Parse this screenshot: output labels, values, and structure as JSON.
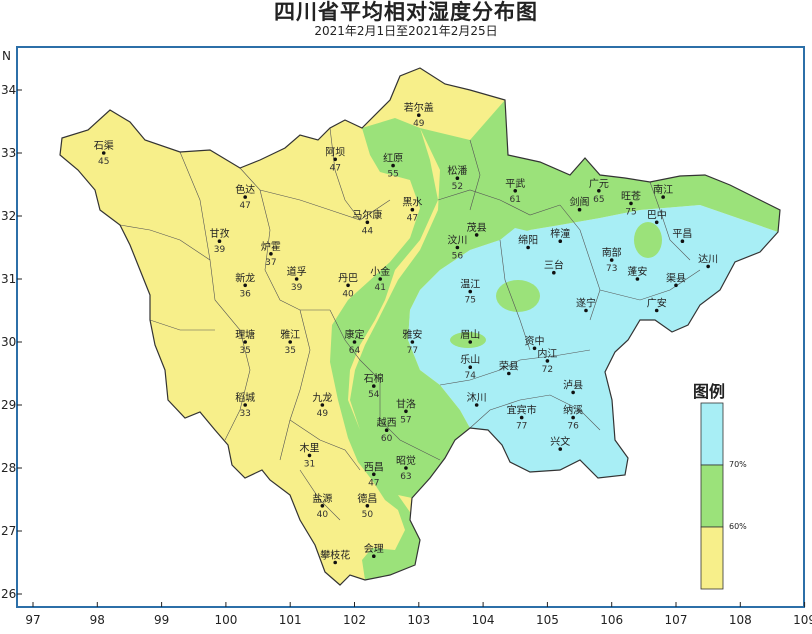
{
  "title": "四川省平均相对湿度分布图",
  "subtitle": "2021年2月1日至2021年2月25日",
  "colors": {
    "low": "#f7ef8a",
    "mid": "#9be27a",
    "high": "#a8eef5",
    "border": "#333333",
    "frame": "#2c6fa8"
  },
  "axis": {
    "x_ticks": [
      "97",
      "98",
      "99",
      "100",
      "101",
      "102",
      "103",
      "104",
      "105",
      "106",
      "107",
      "108",
      "109"
    ],
    "y_ticks": [
      "26",
      "27",
      "28",
      "29",
      "30",
      "31",
      "32",
      "33",
      "34"
    ],
    "north_label": "N"
  },
  "legend": {
    "title": "图例",
    "breaks": [
      "70%",
      "60%"
    ],
    "classes": [
      "high",
      "mid",
      "low"
    ]
  },
  "stations": [
    {
      "name": "若尔盖",
      "value": "49",
      "lon": 103.0,
      "lat": 33.6
    },
    {
      "name": "石渠",
      "value": "45",
      "lon": 98.1,
      "lat": 33.0
    },
    {
      "name": "色达",
      "value": "47",
      "lon": 100.3,
      "lat": 32.3
    },
    {
      "name": "阿坝",
      "value": "47",
      "lon": 101.7,
      "lat": 32.9
    },
    {
      "name": "红原",
      "value": "55",
      "lon": 102.6,
      "lat": 32.8
    },
    {
      "name": "松潘",
      "value": "52",
      "lon": 103.6,
      "lat": 32.6
    },
    {
      "name": "平武",
      "value": "61",
      "lon": 104.5,
      "lat": 32.4
    },
    {
      "name": "广元",
      "value": "65",
      "lon": 105.8,
      "lat": 32.4
    },
    {
      "name": "旺苍",
      "value": "75",
      "lon": 106.3,
      "lat": 32.2
    },
    {
      "name": "南江",
      "value": "",
      "lon": 106.8,
      "lat": 32.3
    },
    {
      "name": "剑阁",
      "value": "",
      "lon": 105.5,
      "lat": 32.1
    },
    {
      "name": "巴中",
      "value": "",
      "lon": 106.7,
      "lat": 31.9
    },
    {
      "name": "甘孜",
      "value": "39",
      "lon": 99.9,
      "lat": 31.6
    },
    {
      "name": "炉霍",
      "value": "37",
      "lon": 100.7,
      "lat": 31.4
    },
    {
      "name": "马尔康",
      "value": "44",
      "lon": 102.2,
      "lat": 31.9
    },
    {
      "name": "黑水",
      "value": "47",
      "lon": 102.9,
      "lat": 32.1
    },
    {
      "name": "茂县",
      "value": "",
      "lon": 103.9,
      "lat": 31.7
    },
    {
      "name": "汶川",
      "value": "56",
      "lon": 103.6,
      "lat": 31.5
    },
    {
      "name": "绵阳",
      "value": "",
      "lon": 104.7,
      "lat": 31.5
    },
    {
      "name": "梓潼",
      "value": "",
      "lon": 105.2,
      "lat": 31.6
    },
    {
      "name": "南部",
      "value": "73",
      "lon": 106.0,
      "lat": 31.3
    },
    {
      "name": "平昌",
      "value": "",
      "lon": 107.1,
      "lat": 31.6
    },
    {
      "name": "达川",
      "value": "",
      "lon": 107.5,
      "lat": 31.2
    },
    {
      "name": "新龙",
      "value": "36",
      "lon": 100.3,
      "lat": 30.9
    },
    {
      "name": "道孚",
      "value": "39",
      "lon": 101.1,
      "lat": 31.0
    },
    {
      "name": "丹巴",
      "value": "40",
      "lon": 101.9,
      "lat": 30.9
    },
    {
      "name": "小金",
      "value": "41",
      "lon": 102.4,
      "lat": 31.0
    },
    {
      "name": "三台",
      "value": "",
      "lon": 105.1,
      "lat": 31.1
    },
    {
      "name": "蓬安",
      "value": "",
      "lon": 106.4,
      "lat": 31.0
    },
    {
      "name": "渠县",
      "value": "",
      "lon": 107.0,
      "lat": 30.9
    },
    {
      "name": "温江",
      "value": "75",
      "lon": 103.8,
      "lat": 30.8
    },
    {
      "name": "遂宁",
      "value": "",
      "lon": 105.6,
      "lat": 30.5
    },
    {
      "name": "广安",
      "value": "",
      "lon": 106.7,
      "lat": 30.5
    },
    {
      "name": "理塘",
      "value": "35",
      "lon": 100.3,
      "lat": 30.0
    },
    {
      "name": "雅江",
      "value": "35",
      "lon": 101.0,
      "lat": 30.0
    },
    {
      "name": "康定",
      "value": "64",
      "lon": 102.0,
      "lat": 30.0
    },
    {
      "name": "雅安",
      "value": "77",
      "lon": 102.9,
      "lat": 30.0
    },
    {
      "name": "眉山",
      "value": "",
      "lon": 103.8,
      "lat": 30.0
    },
    {
      "name": "内江",
      "value": "72",
      "lon": 105.0,
      "lat": 29.7
    },
    {
      "name": "资中",
      "value": "",
      "lon": 104.8,
      "lat": 29.9
    },
    {
      "name": "乐山",
      "value": "74",
      "lon": 103.8,
      "lat": 29.6
    },
    {
      "name": "荣县",
      "value": "",
      "lon": 104.4,
      "lat": 29.5
    },
    {
      "name": "泸县",
      "value": "",
      "lon": 105.4,
      "lat": 29.2
    },
    {
      "name": "石棉",
      "value": "54",
      "lon": 102.3,
      "lat": 29.3
    },
    {
      "name": "稻城",
      "value": "33",
      "lon": 100.3,
      "lat": 29.0
    },
    {
      "name": "九龙",
      "value": "49",
      "lon": 101.5,
      "lat": 29.0
    },
    {
      "name": "甘洛",
      "value": "57",
      "lon": 102.8,
      "lat": 28.9
    },
    {
      "name": "沐川",
      "value": "",
      "lon": 103.9,
      "lat": 29.0
    },
    {
      "name": "宜宾市",
      "value": "77",
      "lon": 104.6,
      "lat": 28.8
    },
    {
      "name": "纳溪",
      "value": "76",
      "lon": 105.4,
      "lat": 28.8
    },
    {
      "name": "越西",
      "value": "60",
      "lon": 102.5,
      "lat": 28.6
    },
    {
      "name": "木里",
      "value": "31",
      "lon": 101.3,
      "lat": 28.2
    },
    {
      "name": "昭觉",
      "value": "63",
      "lon": 102.8,
      "lat": 28.0
    },
    {
      "name": "西昌",
      "value": "47",
      "lon": 102.3,
      "lat": 27.9
    },
    {
      "name": "兴文",
      "value": "",
      "lon": 105.2,
      "lat": 28.3
    },
    {
      "name": "盐源",
      "value": "40",
      "lon": 101.5,
      "lat": 27.4
    },
    {
      "name": "德昌",
      "value": "50",
      "lon": 102.2,
      "lat": 27.4
    },
    {
      "name": "会理",
      "value": "",
      "lon": 102.3,
      "lat": 26.6
    },
    {
      "name": "攀枝花",
      "value": "",
      "lon": 101.7,
      "lat": 26.5
    }
  ]
}
